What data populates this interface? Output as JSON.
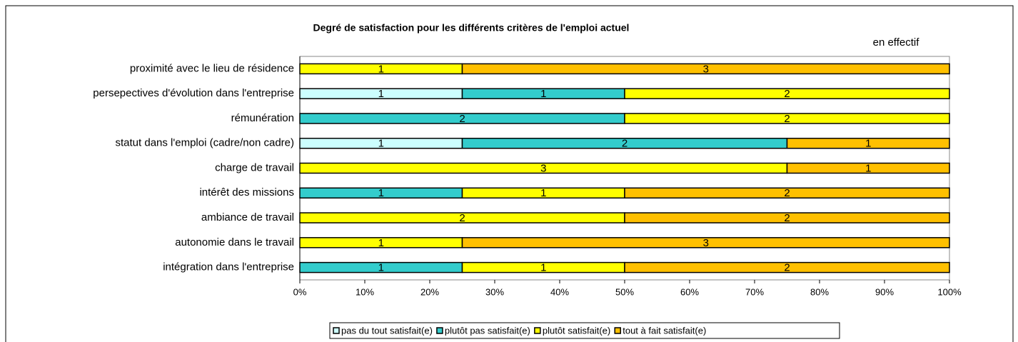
{
  "chart_data": {
    "type": "bar",
    "orientation": "horizontal",
    "stacking": "percent",
    "title": "Degré de satisfaction pour les différents critères de l'emploi actuel",
    "subtitle": "en effectif",
    "categories": [
      "proximité avec le lieu de résidence",
      "persepectives d'évolution dans l'entreprise",
      "rémunération",
      "statut dans l'emploi (cadre/non cadre)",
      "charge de travail",
      "intérêt des missions",
      "ambiance de travail",
      "autonomie dans le travail",
      "intégration dans l'entreprise"
    ],
    "series": [
      {
        "name": "pas du tout satisfait(e)",
        "color": "#ccffff",
        "values": [
          0,
          1,
          0,
          1,
          0,
          0,
          0,
          0,
          0
        ]
      },
      {
        "name": "plutôt pas satisfait(e)",
        "color": "#33cccc",
        "values": [
          0,
          1,
          2,
          2,
          0,
          1,
          0,
          0,
          1
        ]
      },
      {
        "name": "plutôt satisfait(e)",
        "color": "#ffff00",
        "values": [
          1,
          2,
          2,
          0,
          3,
          1,
          2,
          1,
          1
        ]
      },
      {
        "name": "tout à fait satisfait(e)",
        "color": "#ffc000",
        "values": [
          3,
          0,
          0,
          1,
          1,
          2,
          2,
          3,
          2
        ]
      }
    ],
    "xlim": [
      0,
      100
    ],
    "xticks": [
      {
        "value": 0,
        "label": "0%"
      },
      {
        "value": 10,
        "label": "10%"
      },
      {
        "value": 20,
        "label": "20%"
      },
      {
        "value": 30,
        "label": "30%"
      },
      {
        "value": 40,
        "label": "40%"
      },
      {
        "value": 50,
        "label": "50%"
      },
      {
        "value": 60,
        "label": "60%"
      },
      {
        "value": 70,
        "label": "70%"
      },
      {
        "value": 80,
        "label": "80%"
      },
      {
        "value": 90,
        "label": "90%"
      },
      {
        "value": 100,
        "label": "100%"
      }
    ],
    "legend": "bottom"
  }
}
